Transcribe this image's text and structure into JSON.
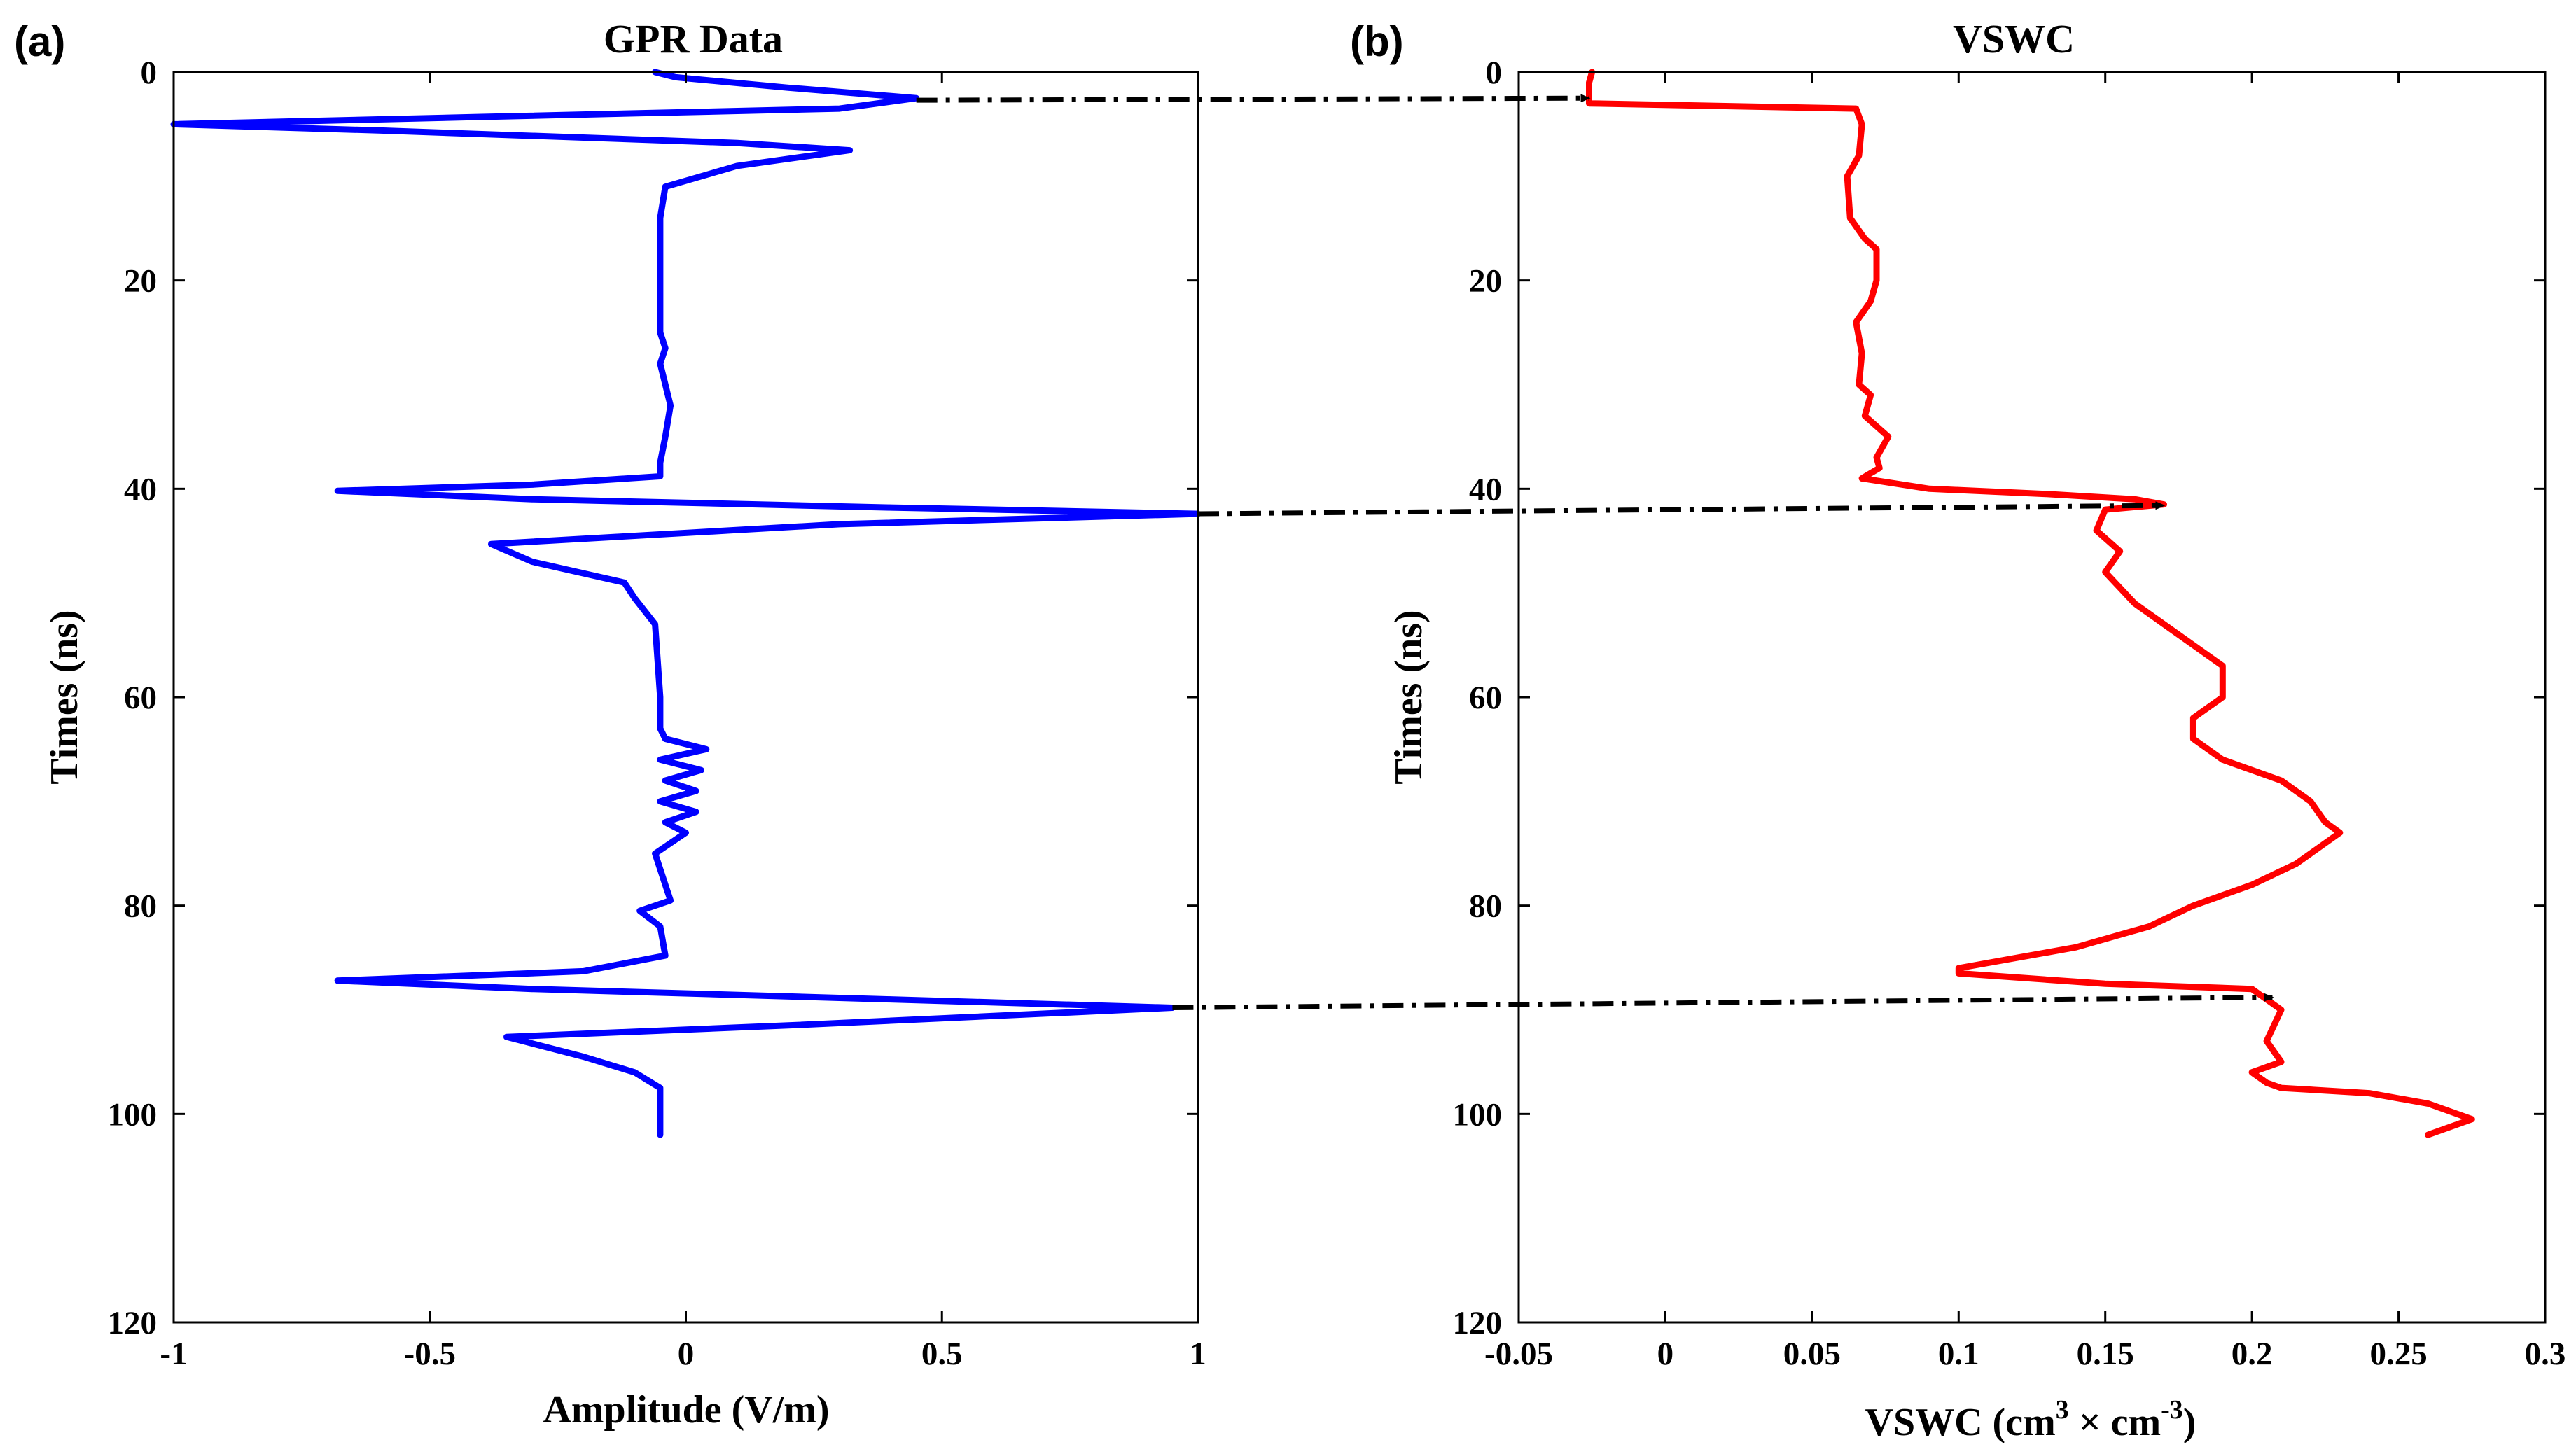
{
  "chart_data": [
    {
      "panel": "(a)",
      "type": "line",
      "title": "GPR Data",
      "xlabel": "Amplitude (V/m)",
      "ylabel": "Times (ns)",
      "xlim": [
        -1,
        1
      ],
      "ylim": [
        0,
        120
      ],
      "y_reversed": true,
      "xticks": [
        -1,
        -0.5,
        0,
        0.5,
        1
      ],
      "xtick_labels": [
        "-1",
        "-0.5",
        "0",
        "0.5",
        "1"
      ],
      "yticks": [
        0,
        20,
        40,
        60,
        80,
        100,
        120
      ],
      "ytick_labels": [
        "0",
        "20",
        "40",
        "60",
        "80",
        "100",
        "120"
      ],
      "series": [
        {
          "name": "GPR trace",
          "color": "#0000ff",
          "x": [
            -0.06,
            -0.02,
            0.2,
            0.45,
            0.3,
            -0.4,
            -1.0,
            -0.6,
            0.1,
            0.32,
            0.1,
            -0.04,
            -0.05,
            -0.05,
            -0.05,
            -0.04,
            -0.05,
            -0.03,
            -0.04,
            -0.05,
            -0.05,
            -0.3,
            -0.68,
            -0.3,
            0.4,
            1.0,
            0.3,
            -0.38,
            -0.3,
            -0.12,
            -0.1,
            -0.06,
            -0.05,
            -0.05,
            -0.04,
            0.04,
            -0.05,
            0.03,
            -0.04,
            0.02,
            -0.05,
            0.02,
            -0.04,
            0.0,
            -0.06,
            -0.04,
            -0.03,
            -0.09,
            -0.05,
            -0.04,
            -0.2,
            -0.68,
            -0.3,
            0.4,
            0.95,
            0.2,
            -0.35,
            -0.2,
            -0.1,
            -0.05,
            -0.05,
            -0.05
          ],
          "y": [
            0.0,
            0.5,
            1.5,
            2.5,
            3.5,
            4.3,
            5.0,
            5.6,
            6.8,
            7.5,
            9.0,
            11.0,
            14.0,
            20.0,
            25.0,
            26.5,
            28.0,
            32.0,
            35.0,
            37.5,
            38.8,
            39.6,
            40.2,
            41.0,
            41.8,
            42.4,
            43.4,
            45.3,
            47.0,
            49.0,
            50.5,
            53.0,
            60.0,
            63.0,
            64.0,
            65.0,
            66.0,
            67.0,
            68.0,
            69.0,
            70.0,
            71.0,
            72.0,
            73.0,
            75.0,
            78.0,
            79.5,
            80.5,
            82.0,
            84.8,
            86.3,
            87.2,
            88.0,
            89.0,
            89.8,
            91.5,
            92.6,
            94.5,
            96.0,
            97.5,
            100.0,
            102.0
          ]
        }
      ]
    },
    {
      "panel": "(b)",
      "type": "line",
      "title": "VSWC",
      "xlabel_main": "VSWC  (cm",
      "xlabel_sup1": "3",
      "xlabel_mid": " × cm",
      "xlabel_sup2": "-3",
      "xlabel_end": ")",
      "ylabel": "Times (ns)",
      "xlim": [
        -0.05,
        0.3
      ],
      "ylim": [
        0,
        120
      ],
      "y_reversed": true,
      "xticks": [
        -0.05,
        0,
        0.05,
        0.1,
        0.15,
        0.2,
        0.25,
        0.3
      ],
      "xtick_labels": [
        "-0.05",
        "0",
        "0.05",
        "0.1",
        "0.15",
        "0.2",
        "0.25",
        "0.3"
      ],
      "yticks": [
        0,
        20,
        40,
        60,
        80,
        100,
        120
      ],
      "ytick_labels": [
        "0",
        "20",
        "40",
        "60",
        "80",
        "100",
        "120"
      ],
      "series": [
        {
          "name": "VSWC profile",
          "color": "#ff0000",
          "x": [
            -0.025,
            -0.026,
            -0.026,
            0.065,
            0.067,
            0.066,
            0.062,
            0.063,
            0.068,
            0.072,
            0.072,
            0.07,
            0.065,
            0.067,
            0.066,
            0.07,
            0.068,
            0.076,
            0.072,
            0.073,
            0.07,
            0.067,
            0.09,
            0.13,
            0.16,
            0.17,
            0.15,
            0.147,
            0.155,
            0.15,
            0.16,
            0.17,
            0.18,
            0.19,
            0.19,
            0.18,
            0.18,
            0.19,
            0.21,
            0.22,
            0.225,
            0.23,
            0.215,
            0.2,
            0.18,
            0.165,
            0.14,
            0.12,
            0.1,
            0.1,
            0.15,
            0.2,
            0.21,
            0.205,
            0.21,
            0.2,
            0.205,
            0.21,
            0.24,
            0.26,
            0.275,
            0.26
          ],
          "y": [
            0.0,
            1.0,
            3.0,
            3.5,
            5.0,
            8.0,
            10.0,
            14.0,
            16.0,
            17.0,
            20.0,
            22.0,
            24.0,
            27.0,
            30.0,
            31.0,
            33.0,
            35.0,
            37.0,
            38.0,
            38.5,
            39.0,
            40.0,
            40.5,
            41.0,
            41.5,
            42.0,
            44.0,
            46.0,
            48.0,
            51.0,
            53.0,
            55.0,
            57.0,
            60.0,
            62.0,
            64.0,
            66.0,
            68.0,
            70.0,
            72.0,
            73.0,
            76.0,
            78.0,
            80.0,
            82.0,
            84.0,
            85.0,
            86.0,
            86.5,
            87.5,
            88.0,
            90.0,
            93.0,
            95.0,
            96.0,
            97.0,
            97.5,
            98.0,
            99.0,
            100.5,
            102.0
          ]
        }
      ]
    }
  ],
  "arrows": [
    {
      "from": "(a)",
      "from_amplitude": 0.45,
      "to": "(b)",
      "to_vswc": -0.026,
      "time_start": 2.7,
      "time_end": 2.5
    },
    {
      "from": "(a)",
      "from_amplitude": 1.0,
      "to": "(b)",
      "to_vswc": 0.17,
      "time_start": 42.4,
      "time_end": 41.6
    },
    {
      "from": "(a)",
      "from_amplitude": 0.95,
      "to": "(b)",
      "to_vswc": 0.207,
      "time_start": 89.8,
      "time_end": 88.8
    }
  ],
  "arrow_color": "#000000"
}
